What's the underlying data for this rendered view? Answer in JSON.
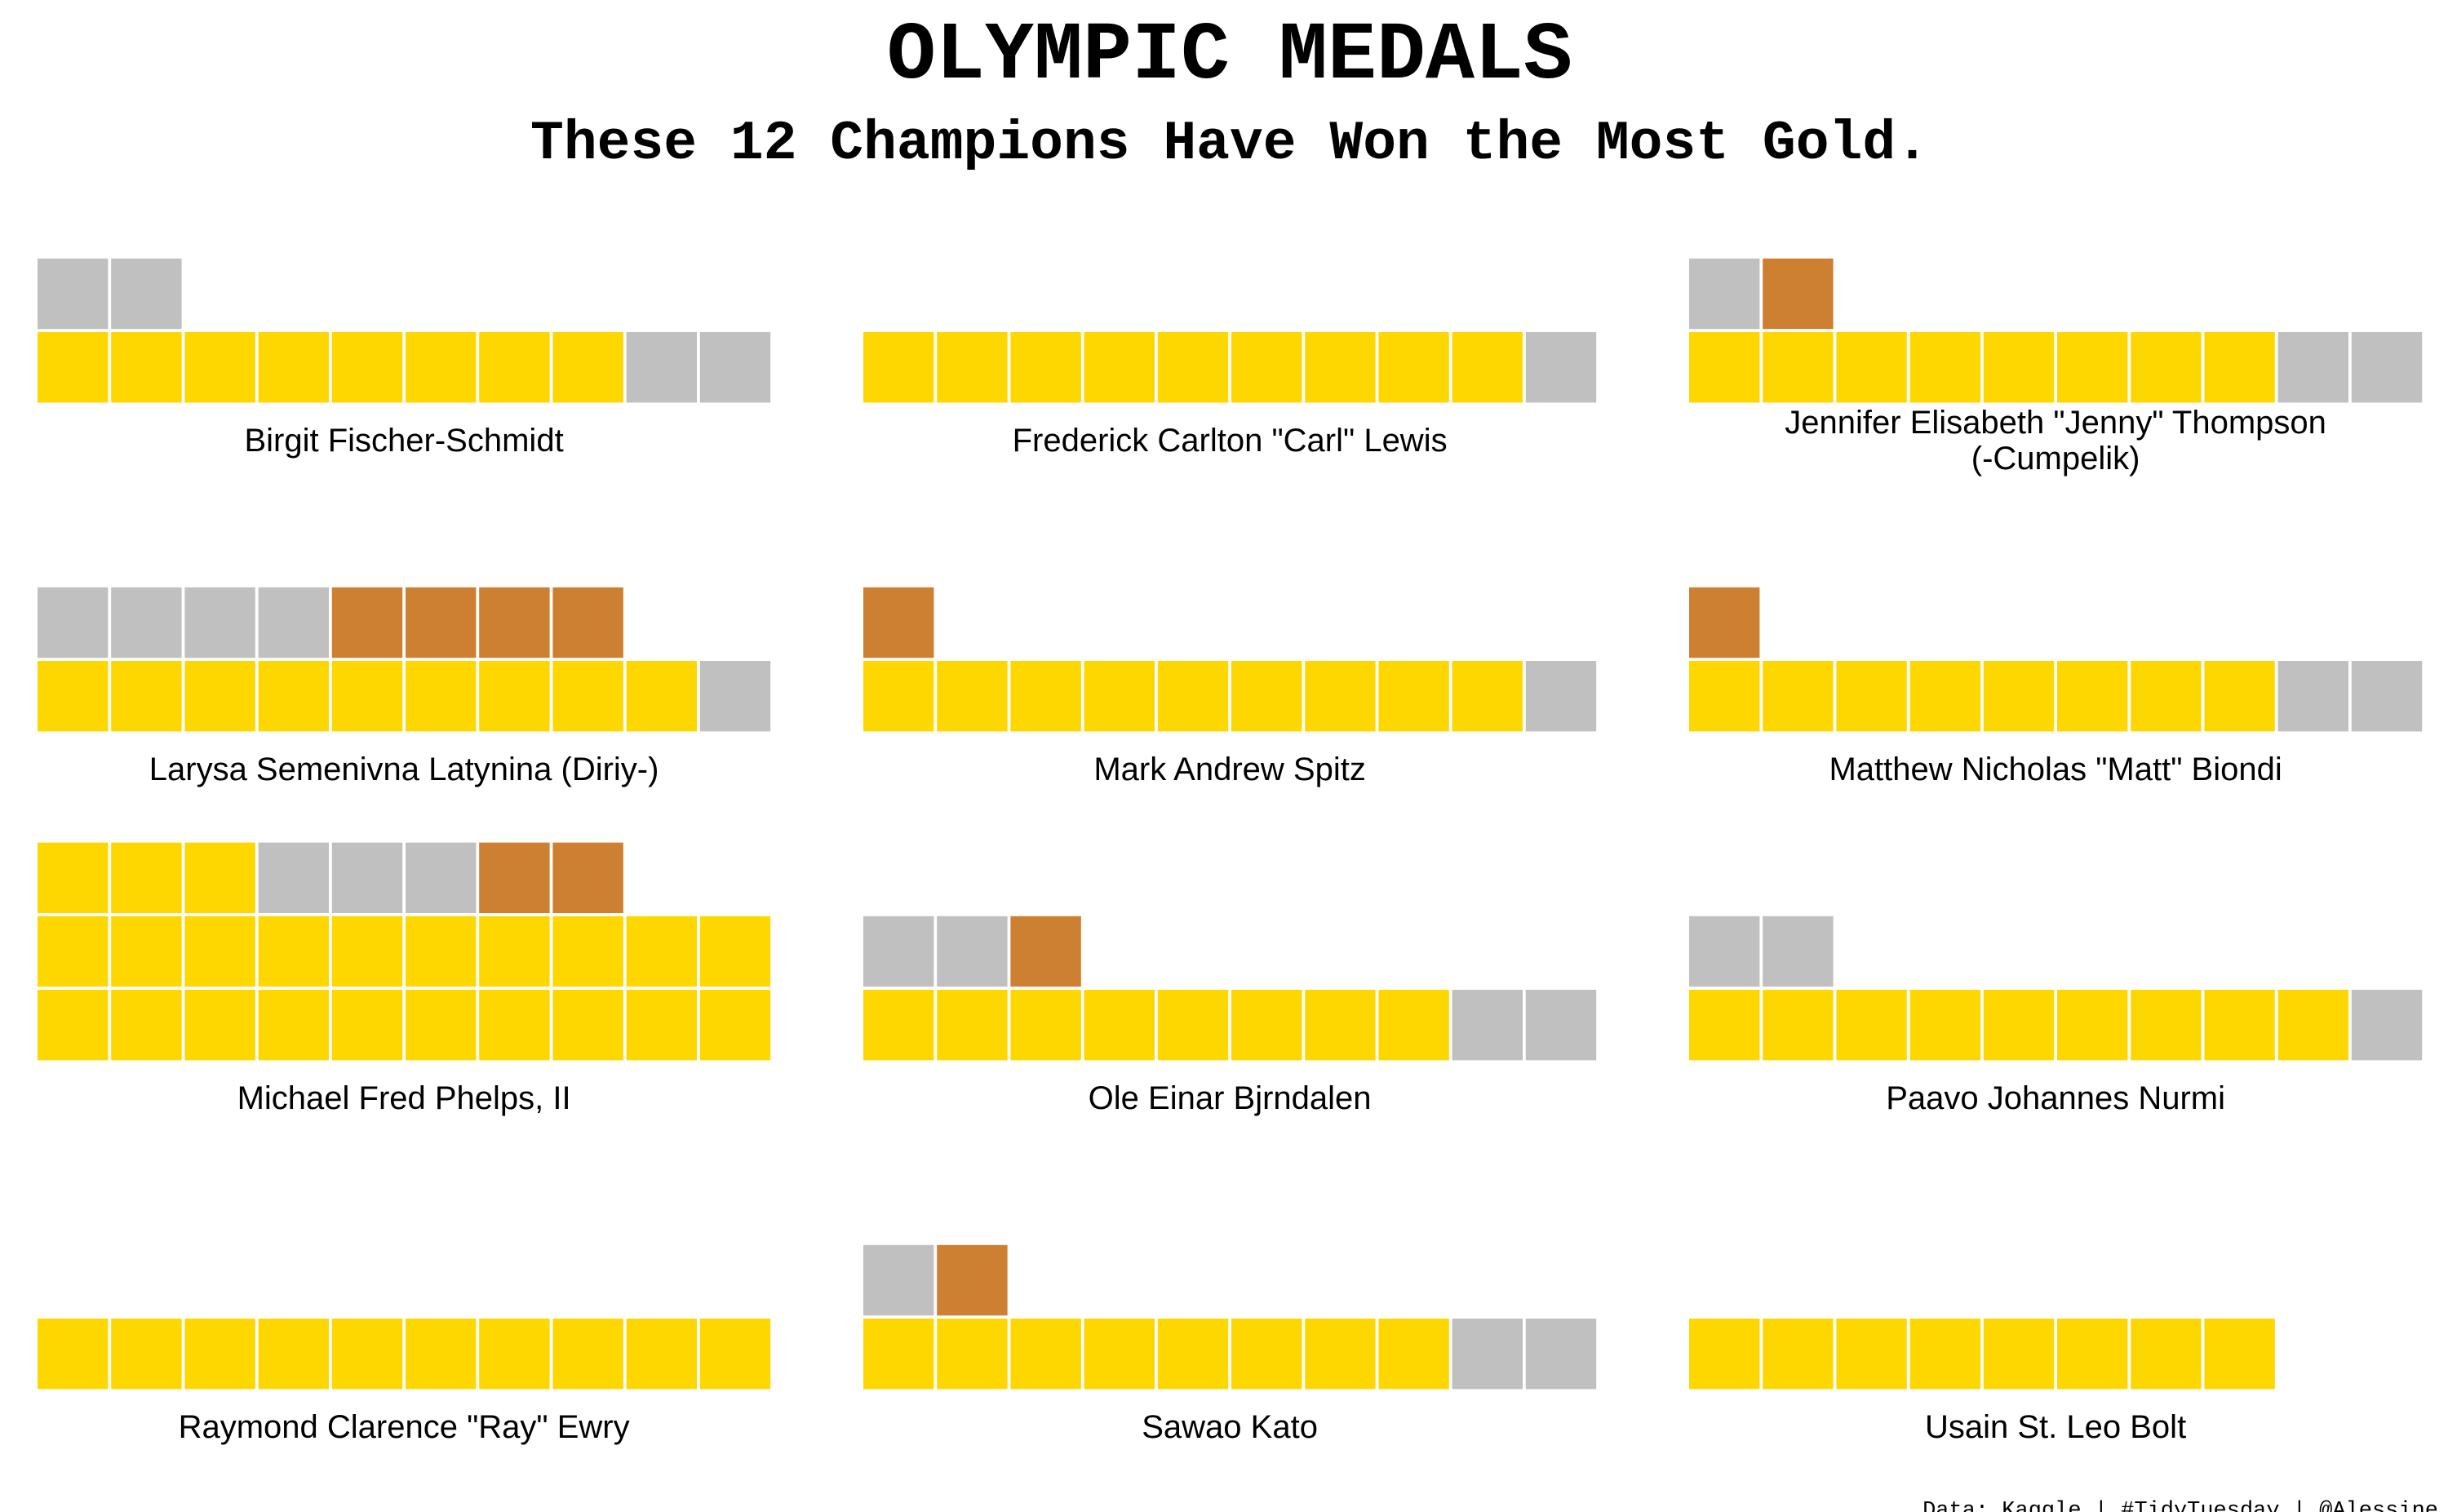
{
  "chart_data": {
    "type": "waffle",
    "title": "OLYMPIC MEDALS",
    "subtitle": "These 12 Champions Have Won the Most Gold.",
    "caption": "Data: Kaggle | #TidyTuesday | @Alessine",
    "units_per_row": 10,
    "colors": {
      "Gold": "#FFD700",
      "Silver": "#C0C0C0",
      "Bronze": "#CD7F32"
    },
    "athletes": [
      {
        "name": [
          "Birgit Fischer-Schmidt"
        ],
        "gold": 8,
        "silver": 4,
        "bronze": 0
      },
      {
        "name": [
          "Frederick Carlton \"Carl\" Lewis"
        ],
        "gold": 9,
        "silver": 1,
        "bronze": 0
      },
      {
        "name": [
          "Jennifer Elisabeth \"Jenny\" Thompson",
          "(-Cumpelik)"
        ],
        "gold": 8,
        "silver": 3,
        "bronze": 1
      },
      {
        "name": [
          "Larysa Semenivna Latynina (Diriy-)"
        ],
        "gold": 9,
        "silver": 5,
        "bronze": 4
      },
      {
        "name": [
          "Mark Andrew Spitz"
        ],
        "gold": 9,
        "silver": 1,
        "bronze": 1
      },
      {
        "name": [
          "Matthew Nicholas \"Matt\" Biondi"
        ],
        "gold": 8,
        "silver": 2,
        "bronze": 1
      },
      {
        "name": [
          "Michael Fred Phelps, II"
        ],
        "gold": 23,
        "silver": 3,
        "bronze": 2
      },
      {
        "name": [
          "Ole Einar Bjrndalen"
        ],
        "gold": 8,
        "silver": 4,
        "bronze": 1
      },
      {
        "name": [
          "Paavo Johannes Nurmi"
        ],
        "gold": 9,
        "silver": 3,
        "bronze": 0
      },
      {
        "name": [
          "Raymond Clarence \"Ray\" Ewry"
        ],
        "gold": 10,
        "silver": 0,
        "bronze": 0
      },
      {
        "name": [
          "Sawao Kato"
        ],
        "gold": 8,
        "silver": 3,
        "bronze": 1
      },
      {
        "name": [
          "Usain St. Leo Bolt"
        ],
        "gold": 8,
        "silver": 0,
        "bronze": 0
      }
    ]
  }
}
